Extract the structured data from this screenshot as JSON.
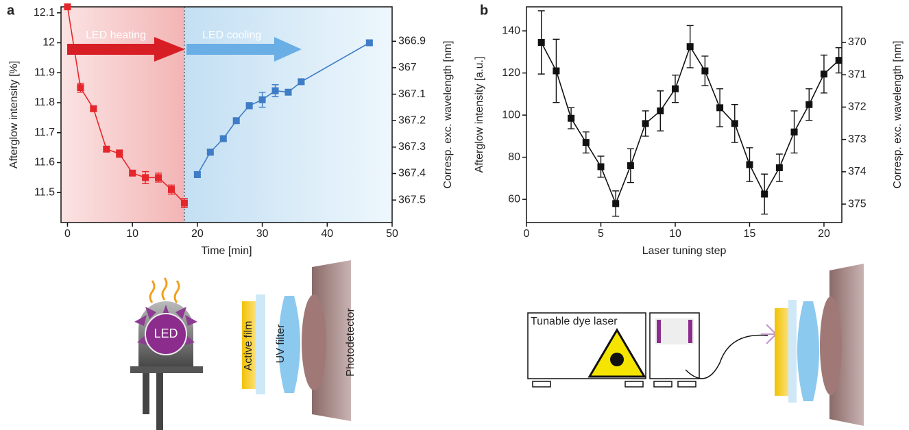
{
  "chart_data": [
    {
      "type": "line",
      "panel": "a",
      "xlabel": "Time [min]",
      "ylabel": "Afterglow intensity [%]",
      "y2label": "Corresp. exc. wavelength [nm]",
      "xlim": [
        -1,
        50
      ],
      "xticks": [
        0,
        10,
        20,
        30,
        40,
        50
      ],
      "ylim": [
        11.4,
        12.12
      ],
      "yticks": [
        11.5,
        11.6,
        11.7,
        11.8,
        11.9,
        12.0,
        12.1
      ],
      "y2lim": [
        367.585,
        366.77
      ],
      "y2ticks": [
        366.9,
        367.0,
        367.1,
        367.2,
        367.3,
        367.4,
        367.5
      ],
      "divider": 18,
      "annotations": [
        "LED heating",
        "LED cooling"
      ],
      "series": [
        {
          "color": "#e5262b",
          "x": [
            0,
            2,
            4,
            6,
            8,
            10,
            12,
            14,
            16,
            18
          ],
          "values": [
            12.12,
            11.85,
            11.78,
            11.645,
            11.63,
            11.565,
            11.55,
            11.55,
            11.51,
            11.465
          ],
          "errors": [
            0.008,
            0.015,
            0.008,
            0.008,
            0.012,
            0.008,
            0.02,
            0.015,
            0.015,
            0.015
          ]
        },
        {
          "color": "#3e7cc6",
          "x": [
            20,
            22,
            24,
            26,
            28,
            30,
            32,
            34,
            36,
            46.5
          ],
          "values": [
            11.56,
            11.635,
            11.68,
            11.74,
            11.79,
            11.81,
            11.84,
            11.835,
            11.87,
            12.0
          ],
          "errors": [
            0.008,
            0.01,
            0.008,
            0.008,
            0.01,
            0.025,
            0.02,
            0.008,
            0.008,
            0.008
          ]
        }
      ]
    },
    {
      "type": "line",
      "panel": "b",
      "xlabel": "Laser tuning step",
      "ylabel": "Afterglow intensity [a.u.]",
      "y2label": "Corresp. exc. wavelength [nm]",
      "xlim": [
        0,
        21.2
      ],
      "xticks": [
        0,
        5,
        10,
        15,
        20
      ],
      "ylim": [
        49,
        151.4
      ],
      "yticks": [
        60,
        80,
        100,
        120,
        140
      ],
      "y2lim": [
        375.57,
        368.9
      ],
      "y2ticks": [
        370,
        371,
        372,
        373,
        374,
        375
      ],
      "series": [
        {
          "color": "#111111",
          "x": [
            1,
            2,
            3,
            4,
            5,
            6,
            7,
            8,
            9,
            10,
            11,
            12,
            13,
            14,
            15,
            16,
            17,
            18,
            19,
            20,
            21
          ],
          "values": [
            134.5,
            121,
            98.5,
            87,
            75.5,
            58,
            76,
            96,
            102,
            112.5,
            132.5,
            121,
            103.5,
            96,
            76.5,
            62.5,
            75,
            92,
            105,
            119.5,
            126
          ],
          "errors": [
            15,
            15,
            5,
            5,
            5,
            6,
            8,
            6,
            9.5,
            6.5,
            10,
            7,
            9,
            9,
            8,
            9.5,
            6.5,
            10,
            7.5,
            9,
            6
          ]
        }
      ]
    }
  ],
  "diagram_a": {
    "led": "LED",
    "film": "Active film",
    "filter": "UV filter",
    "detector": "Photodetector"
  },
  "diagram_b": {
    "laser": "Tunable dye laser"
  }
}
